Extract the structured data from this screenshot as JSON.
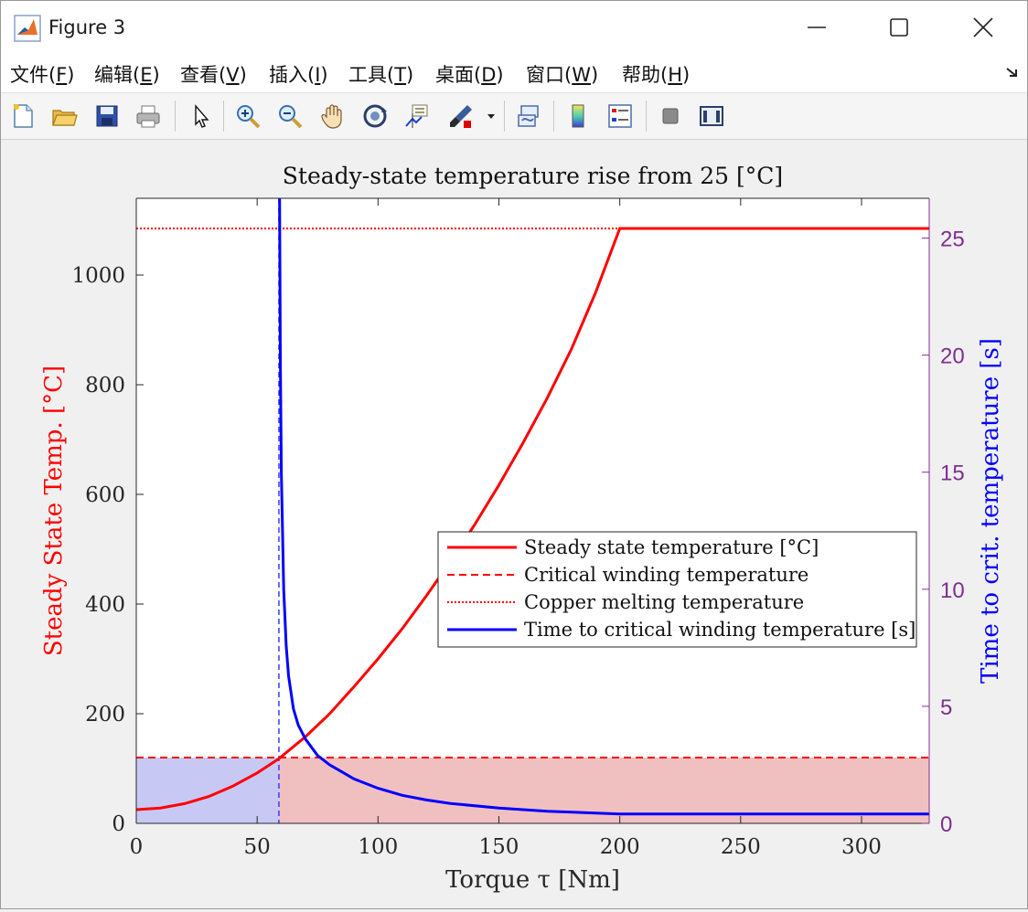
{
  "window": {
    "title": "Figure 3",
    "controls": [
      "minimize",
      "maximize",
      "close"
    ]
  },
  "menu": [
    {
      "label": "文件(",
      "key": "F",
      "suffix": ")"
    },
    {
      "label": "编辑(",
      "key": "E",
      "suffix": ")"
    },
    {
      "label": "查看(",
      "key": "V",
      "suffix": ")"
    },
    {
      "label": "插入(",
      "key": "I",
      "suffix": ")"
    },
    {
      "label": "工具(",
      "key": "T",
      "suffix": ")"
    },
    {
      "label": "桌面(",
      "key": "D",
      "suffix": ")"
    },
    {
      "label": "窗口(",
      "key": "W",
      "suffix": ")"
    },
    {
      "label": "帮助(",
      "key": "H",
      "suffix": ")"
    }
  ],
  "toolbar": {
    "icons": [
      "new-file-icon",
      "open-folder-icon",
      "save-icon",
      "print-icon",
      "pointer-icon",
      "zoom-in-icon",
      "zoom-out-icon",
      "pan-hand-icon",
      "rotate-3d-icon",
      "data-cursor-icon",
      "brush-icon",
      "brush-dropdown-icon",
      "link-plot-icon",
      "colorbar-icon",
      "legend-icon",
      "hide-plot-tools-icon",
      "show-plot-tools-icon"
    ]
  },
  "chart_data": {
    "type": "line",
    "title": "Steady-state temperature rise from 25 [°C]",
    "xlabel": "Torque τ [Nm]",
    "ylabel_left": "Steady State Temp. [°C]",
    "ylabel_right": "Time to crit. temperature [s]",
    "xlim": [
      0,
      328
    ],
    "ylim_left": [
      0,
      1140
    ],
    "ylim_right": [
      0,
      26.7
    ],
    "x_ticks": [
      0,
      50,
      100,
      150,
      200,
      250,
      300
    ],
    "y_left_ticks": [
      0,
      200,
      400,
      600,
      800,
      1000
    ],
    "y_right_ticks": [
      0,
      5,
      10,
      15,
      20,
      25
    ],
    "critical_torque": 59,
    "critical_temperature": 120,
    "copper_melting_temperature": 1085,
    "series": [
      {
        "name": "Steady state temperature [°C]",
        "axis": "left",
        "color": "#ff0000",
        "style": "solid",
        "x": [
          0,
          10,
          20,
          30,
          40,
          50,
          59,
          70,
          80,
          90,
          100,
          110,
          120,
          130,
          140,
          150,
          160,
          170,
          180,
          190,
          200,
          250,
          328
        ],
        "y": [
          25,
          28,
          36,
          49,
          68,
          92,
          118,
          158,
          200,
          249,
          300,
          355,
          415,
          478,
          545,
          617,
          694,
          776,
          865,
          968,
          1085,
          1085,
          1085
        ]
      },
      {
        "name": "Critical winding temperature",
        "axis": "left",
        "color": "#ff0000",
        "style": "dashed",
        "x": [
          0,
          328
        ],
        "y": [
          120,
          120
        ]
      },
      {
        "name": "Copper melting temperature",
        "axis": "left",
        "color": "#ff0000",
        "style": "dotted",
        "x": [
          0,
          328
        ],
        "y": [
          1085,
          1085
        ]
      },
      {
        "name": "Time to critical winding temperature [s]",
        "axis": "right",
        "color": "#0000ff",
        "style": "solid",
        "x": [
          59.3,
          59.6,
          60,
          61,
          62,
          63,
          65,
          67,
          70,
          75,
          80,
          85,
          90,
          100,
          110,
          120,
          130,
          150,
          170,
          200,
          250,
          328
        ],
        "y": [
          26.7,
          20,
          15,
          10,
          7.6,
          6.3,
          4.9,
          4.2,
          3.6,
          2.9,
          2.5,
          2.2,
          1.9,
          1.5,
          1.2,
          1.0,
          0.85,
          0.65,
          0.52,
          0.4,
          0.4,
          0.4
        ]
      }
    ],
    "regions": [
      {
        "name": "safe-region",
        "x": [
          0,
          59
        ],
        "y_left": [
          0,
          120
        ],
        "color": "#c8c8f5"
      },
      {
        "name": "over-critical-region",
        "x": [
          59,
          328
        ],
        "y_left": [
          0,
          120
        ],
        "color": "#f0c0c0"
      }
    ],
    "legend": {
      "placement": "center-right",
      "entries": [
        "Steady state temperature [°C]",
        "Critical winding temperature",
        "Copper melting temperature",
        "Time to critical winding temperature [s]"
      ]
    },
    "colors": {
      "left_axis": "#ff0000",
      "right_axis": "#7e2f8e",
      "right_label": "#0000ff"
    },
    "grid": false
  }
}
